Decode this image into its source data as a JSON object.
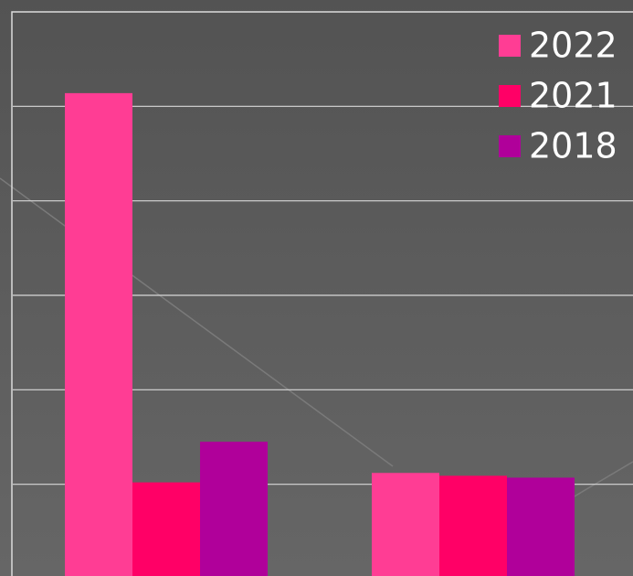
{
  "chart_data": {
    "type": "bar",
    "categories": [
      null,
      null
    ],
    "series": [
      {
        "name": "2022",
        "color": "#ff3d94",
        "values": [
          5.14,
          1.12
        ]
      },
      {
        "name": "2021",
        "color": "#ff0066",
        "values": [
          1.02,
          1.09
        ]
      },
      {
        "name": "2018",
        "color": "#b0009a",
        "values": [
          1.45,
          1.07
        ]
      }
    ],
    "ylim": [
      0,
      6
    ],
    "ygrid": [
      1,
      2,
      3,
      4,
      5
    ],
    "grid": true,
    "legend": "top-right"
  }
}
